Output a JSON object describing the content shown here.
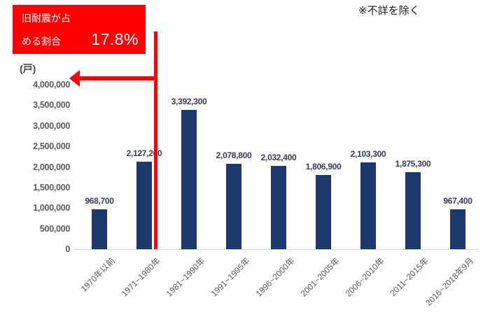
{
  "annotation_box": {
    "label_line1": "旧耐震が占",
    "label_line2": "める割合",
    "value": "17.8%",
    "bg_color": "#ff0000",
    "text_color": "#ffffff"
  },
  "note": "※不詳を除く",
  "unit_label": "(戸)",
  "chart_data": {
    "type": "bar",
    "categories": [
      "1970年以前",
      "1971~1980年",
      "1981~1990年",
      "1991~1995年",
      "1996~2000年",
      "2001~2005年",
      "2006~2010年",
      "2011~2015年",
      "2016~2018年9月"
    ],
    "values": [
      968700,
      2127200,
      3392300,
      2078800,
      2032400,
      1806900,
      2103300,
      1875300,
      967400
    ],
    "value_labels": [
      "968,700",
      "2,127,200",
      "3,392,300",
      "2,078,800",
      "2,032,400",
      "1,806,900",
      "2,103,300",
      "1,875,300",
      "967,400"
    ],
    "ylabel": "(戸)",
    "ylim": [
      0,
      4000000
    ],
    "ytick_interval": 500000,
    "yticks": [
      "0",
      "500,000",
      "1,000,000",
      "1,500,000",
      "2,000,000",
      "2,500,000",
      "3,000,000",
      "3,500,000",
      "4,000,000"
    ],
    "grid": false,
    "legend": "none",
    "bar_color": "#1c3a6e",
    "divider_color": "#ff0000",
    "divider_after_category_index": 1
  }
}
